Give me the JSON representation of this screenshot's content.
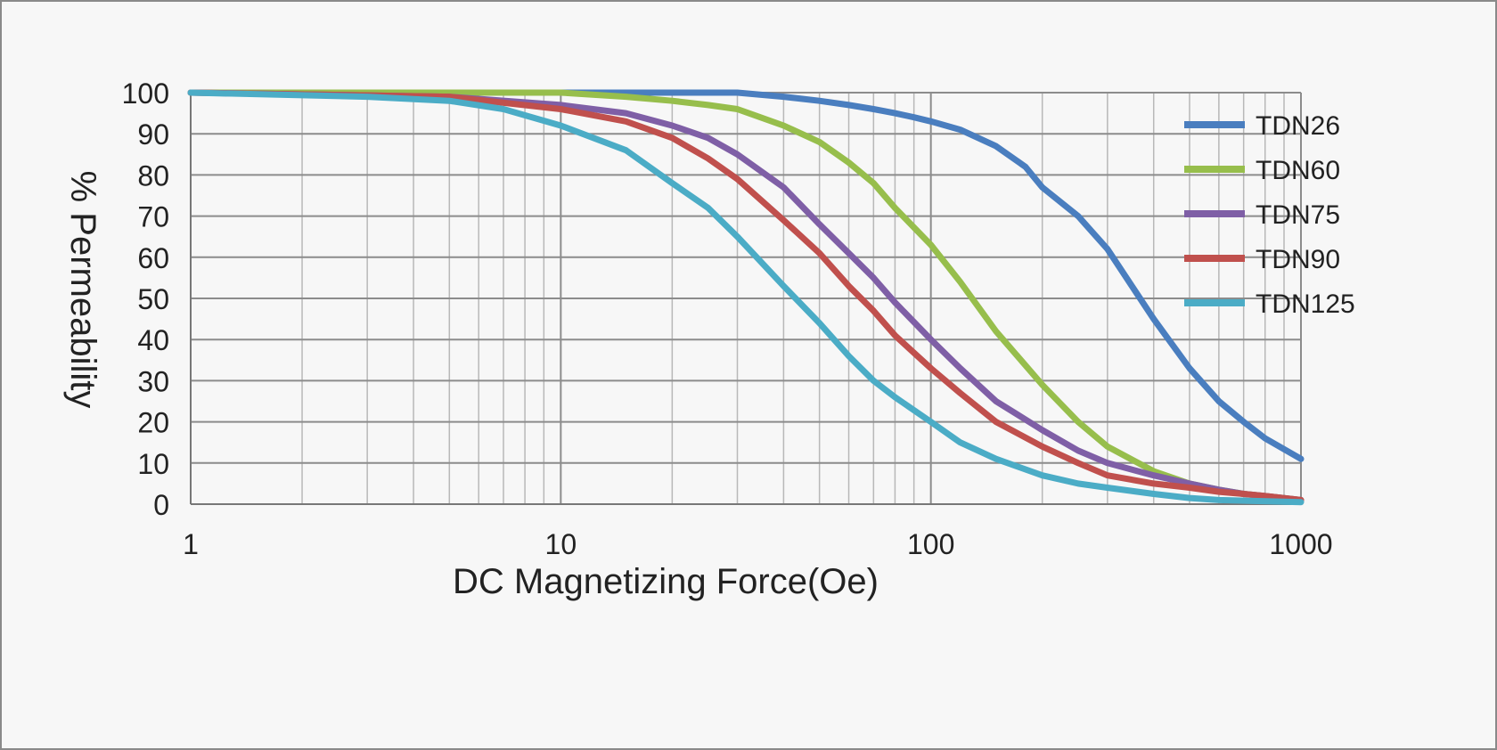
{
  "chart_data": {
    "type": "line",
    "xscale": "log",
    "xlabel": "DC Magnetizing Force(Oe)",
    "ylabel": "% Permeability",
    "xlim": [
      1,
      1000
    ],
    "ylim": [
      0,
      100
    ],
    "xticks": [
      1,
      10,
      100,
      1000
    ],
    "xtick_labels": [
      "1",
      "10",
      "100",
      "1000"
    ],
    "yticks": [
      0,
      10,
      20,
      30,
      40,
      50,
      60,
      70,
      80,
      90,
      100
    ],
    "ytick_labels": [
      "0",
      "10",
      "20",
      "30",
      "40",
      "50",
      "60",
      "70",
      "80",
      "90",
      "100"
    ],
    "grid": true,
    "legend_position": "top-right",
    "series": [
      {
        "name": "TDN26",
        "color": "#4a7ebf",
        "points": [
          [
            1,
            100
          ],
          [
            10,
            100
          ],
          [
            30,
            100
          ],
          [
            40,
            99
          ],
          [
            50,
            98
          ],
          [
            60,
            97
          ],
          [
            70,
            96
          ],
          [
            80,
            95
          ],
          [
            90,
            94
          ],
          [
            100,
            93
          ],
          [
            120,
            91
          ],
          [
            150,
            87
          ],
          [
            180,
            82
          ],
          [
            200,
            77
          ],
          [
            250,
            70
          ],
          [
            300,
            62
          ],
          [
            400,
            45
          ],
          [
            500,
            33
          ],
          [
            600,
            25
          ],
          [
            700,
            20
          ],
          [
            800,
            16
          ],
          [
            1000,
            11
          ]
        ]
      },
      {
        "name": "TDN60",
        "color": "#97be4c",
        "points": [
          [
            1,
            100
          ],
          [
            5,
            100
          ],
          [
            10,
            100
          ],
          [
            15,
            99
          ],
          [
            20,
            98
          ],
          [
            25,
            97
          ],
          [
            30,
            96
          ],
          [
            40,
            92
          ],
          [
            50,
            88
          ],
          [
            60,
            83
          ],
          [
            70,
            78
          ],
          [
            80,
            72
          ],
          [
            100,
            63
          ],
          [
            120,
            54
          ],
          [
            150,
            42
          ],
          [
            200,
            29
          ],
          [
            250,
            20
          ],
          [
            300,
            14
          ],
          [
            400,
            8
          ],
          [
            500,
            5
          ],
          [
            600,
            3.5
          ],
          [
            700,
            2.5
          ],
          [
            800,
            2
          ],
          [
            1000,
            1
          ]
        ]
      },
      {
        "name": "TDN75",
        "color": "#7f5fa6",
        "points": [
          [
            1,
            100
          ],
          [
            5,
            99
          ],
          [
            10,
            97
          ],
          [
            15,
            95
          ],
          [
            20,
            92
          ],
          [
            25,
            89
          ],
          [
            30,
            85
          ],
          [
            40,
            77
          ],
          [
            50,
            68
          ],
          [
            60,
            61
          ],
          [
            70,
            55
          ],
          [
            80,
            49
          ],
          [
            100,
            40
          ],
          [
            120,
            33
          ],
          [
            150,
            25
          ],
          [
            200,
            18
          ],
          [
            250,
            13
          ],
          [
            300,
            10
          ],
          [
            400,
            7
          ],
          [
            500,
            5
          ],
          [
            600,
            3.5
          ],
          [
            700,
            2.5
          ],
          [
            800,
            2
          ],
          [
            1000,
            1
          ]
        ]
      },
      {
        "name": "TDN90",
        "color": "#c0504d",
        "points": [
          [
            1,
            100
          ],
          [
            5,
            99
          ],
          [
            10,
            96
          ],
          [
            15,
            93
          ],
          [
            20,
            89
          ],
          [
            25,
            84
          ],
          [
            30,
            79
          ],
          [
            40,
            69
          ],
          [
            50,
            61
          ],
          [
            60,
            53
          ],
          [
            70,
            47
          ],
          [
            80,
            41
          ],
          [
            100,
            33
          ],
          [
            120,
            27
          ],
          [
            150,
            20
          ],
          [
            200,
            14
          ],
          [
            250,
            10
          ],
          [
            300,
            7
          ],
          [
            400,
            5
          ],
          [
            500,
            4
          ],
          [
            600,
            3
          ],
          [
            700,
            2.5
          ],
          [
            800,
            2
          ],
          [
            1000,
            1
          ]
        ]
      },
      {
        "name": "TDN125",
        "color": "#4bacc6",
        "points": [
          [
            1,
            100
          ],
          [
            3,
            99
          ],
          [
            5,
            98
          ],
          [
            7,
            96
          ],
          [
            10,
            92
          ],
          [
            15,
            86
          ],
          [
            20,
            78
          ],
          [
            25,
            72
          ],
          [
            30,
            65
          ],
          [
            40,
            53
          ],
          [
            50,
            44
          ],
          [
            60,
            36
          ],
          [
            70,
            30
          ],
          [
            80,
            26
          ],
          [
            100,
            20
          ],
          [
            120,
            15
          ],
          [
            150,
            11
          ],
          [
            200,
            7
          ],
          [
            250,
            5
          ],
          [
            300,
            4
          ],
          [
            400,
            2.5
          ],
          [
            500,
            1.5
          ],
          [
            600,
            1
          ],
          [
            1000,
            0.5
          ]
        ]
      }
    ]
  }
}
